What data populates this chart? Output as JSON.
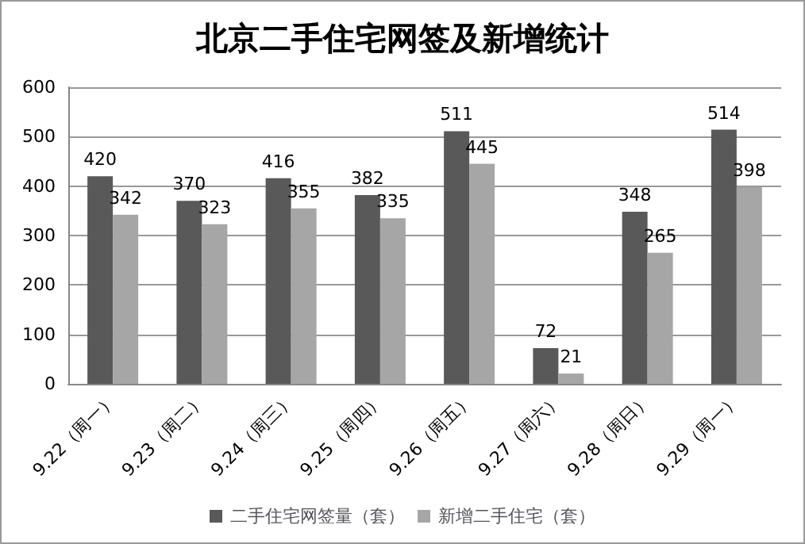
{
  "chart_data": {
    "type": "bar",
    "title": "北京二手住宅网签及新增统计",
    "categories": [
      "9.22（周一）",
      "9.23（周二）",
      "9.24（周三）",
      "9.25（周四）",
      "9.26（周五）",
      "9.27（周六）",
      "9.28（周日）",
      "9.29（周一）"
    ],
    "series": [
      {
        "name": "二手住宅网签量（套）",
        "color": "#595959",
        "values": [
          420,
          370,
          416,
          382,
          511,
          72,
          348,
          514
        ]
      },
      {
        "name": "新增二手住宅（套）",
        "color": "#a6a6a6",
        "values": [
          342,
          323,
          355,
          335,
          445,
          21,
          265,
          398
        ]
      }
    ],
    "ylim": [
      0,
      600
    ],
    "yticks": [
      0,
      100,
      200,
      300,
      400,
      500,
      600
    ],
    "grid": "y",
    "legend": "bottom",
    "data_labels": true
  }
}
